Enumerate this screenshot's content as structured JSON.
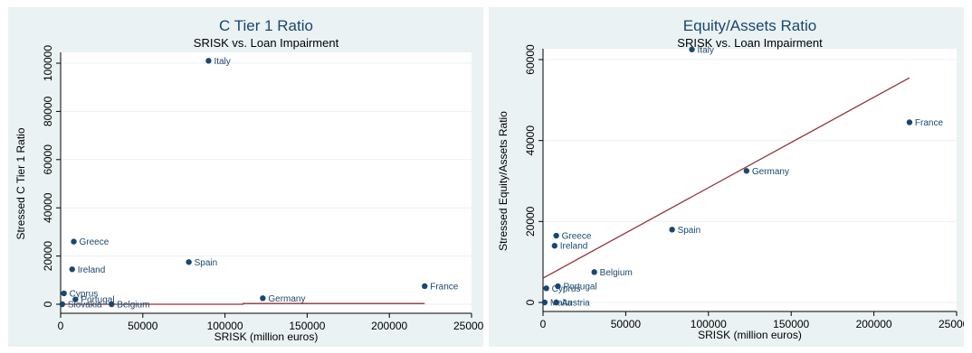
{
  "chart_data": [
    {
      "type": "scatter",
      "title": "C Tier 1 Ratio",
      "subtitle": "SRISK vs. Loan Impairment",
      "xlabel": "SRISK (million euros)",
      "ylabel": "Stressed C Tier 1 Ratio",
      "xlim": [
        0,
        250000
      ],
      "ylim": [
        0,
        100000
      ],
      "xticks": [
        0,
        50000,
        100000,
        150000,
        200000,
        250000
      ],
      "yticks": [
        0,
        20000,
        40000,
        60000,
        80000,
        100000
      ],
      "grid": "horizontal",
      "points": [
        {
          "label": "Italy",
          "x": 90000,
          "y": 101000
        },
        {
          "label": "Greece",
          "x": 8000,
          "y": 26000
        },
        {
          "label": "Spain",
          "x": 78000,
          "y": 17500
        },
        {
          "label": "Ireland",
          "x": 7000,
          "y": 14500
        },
        {
          "label": "France",
          "x": 221500,
          "y": 7500
        },
        {
          "label": "Cyprus",
          "x": 2000,
          "y": 4500
        },
        {
          "label": "Germany",
          "x": 123000,
          "y": 2500
        },
        {
          "label": "Portugal",
          "x": 9000,
          "y": 2000
        },
        {
          "label": "Belgium",
          "x": 31000,
          "y": 0
        },
        {
          "label": "Slovakia",
          "x": 1000,
          "y": 0
        }
      ],
      "fit_line": {
        "x": [
          0,
          111000,
          111000,
          221500
        ],
        "y": [
          0,
          0,
          300,
          300
        ]
      },
      "colors": {
        "marker": "#1a476f",
        "label": "#1a476f",
        "fit": "#90353b",
        "title": "#1a476f",
        "panel": "#eaf2f3"
      }
    },
    {
      "type": "scatter",
      "title": "Equity/Assets Ratio",
      "subtitle": "SRISK vs. Loan Impairment",
      "xlabel": "SRISK (million euros)",
      "ylabel": "Stressed Equity/Assets Ratio",
      "xlim": [
        0,
        250000
      ],
      "ylim": [
        0,
        60000
      ],
      "xticks": [
        0,
        50000,
        100000,
        150000,
        200000,
        250000
      ],
      "yticks": [
        0,
        20000,
        40000,
        60000
      ],
      "grid": "horizontal",
      "points": [
        {
          "label": "Italy",
          "x": 90000,
          "y": 62500
        },
        {
          "label": "France",
          "x": 221500,
          "y": 44500
        },
        {
          "label": "Germany",
          "x": 123000,
          "y": 32500
        },
        {
          "label": "Spain",
          "x": 78000,
          "y": 18000
        },
        {
          "label": "Greece",
          "x": 8000,
          "y": 16500
        },
        {
          "label": "Ireland",
          "x": 7000,
          "y": 14000
        },
        {
          "label": "Belgium",
          "x": 31000,
          "y": 7500
        },
        {
          "label": "Portugal",
          "x": 9000,
          "y": 4000
        },
        {
          "label": "Cyprus",
          "x": 2000,
          "y": 3500
        },
        {
          "label": "Austria",
          "x": 8000,
          "y": 0
        },
        {
          "label": "Malta",
          "x": 1000,
          "y": 0
        }
      ],
      "fit_line": {
        "x": [
          0,
          221500
        ],
        "y": [
          6000,
          55500
        ]
      },
      "colors": {
        "marker": "#1a476f",
        "label": "#1a476f",
        "fit": "#90353b",
        "title": "#1a476f",
        "panel": "#eaf2f3"
      }
    }
  ]
}
